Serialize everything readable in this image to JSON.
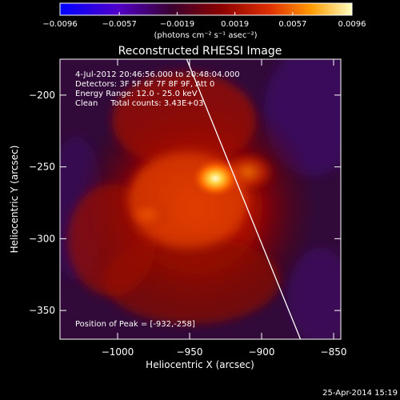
{
  "chart_data": {
    "type": "heatmap",
    "title": "Reconstructed RHESSI Image",
    "xlabel": "Heliocentric X (arcsec)",
    "ylabel": "Heliocentric Y (arcsec)",
    "xlim": [
      -1040,
      -845
    ],
    "ylim": [
      -370,
      -175
    ],
    "x_ticks": [
      -1000,
      -950,
      -900,
      -850
    ],
    "y_ticks": [
      -350,
      -300,
      -250,
      -200
    ],
    "x_tick_labels": [
      "−1000",
      "−950",
      "−900",
      "−850"
    ],
    "y_tick_labels": [
      "−350",
      "−300",
      "−250",
      "−200"
    ],
    "colorbar": {
      "range": [
        -0.0096,
        0.0096
      ],
      "ticks": [
        -0.0096,
        -0.0057,
        -0.0019,
        0.0019,
        0.0057,
        0.0096
      ],
      "tick_labels": [
        "−0.0096",
        "−0.0057",
        "−0.0019",
        "0.0019",
        "0.0057",
        "0.0096"
      ],
      "unit_label": "(photons cm⁻² s⁻¹ asec⁻²)",
      "colormap": [
        "#0000ff",
        "#5000c8",
        "#3a0030",
        "#8a0000",
        "#e03000",
        "#ff9a00",
        "#ffffc0"
      ]
    },
    "annotations": {
      "time_range": "4-Jul-2012 20:46:56.000 to 20:48:04.000",
      "detectors": "Detectors: 3F 5F 6F 7F 8F 9F, Att 0",
      "energy_range": "Energy Range: 12.0 - 25.0 keV",
      "clean_info": "Clean     Total counts: 3.43E+03",
      "peak_position": "Position of Peak = [-932,-258]"
    },
    "peak": [
      -932,
      -258
    ],
    "limb_line": [
      [
        -952,
        -175
      ],
      [
        -873,
        -370
      ]
    ]
  },
  "footer": {
    "date": "25-Apr-2014 15:19"
  },
  "colors": {
    "background": "#000000",
    "text": "#ffffff"
  }
}
